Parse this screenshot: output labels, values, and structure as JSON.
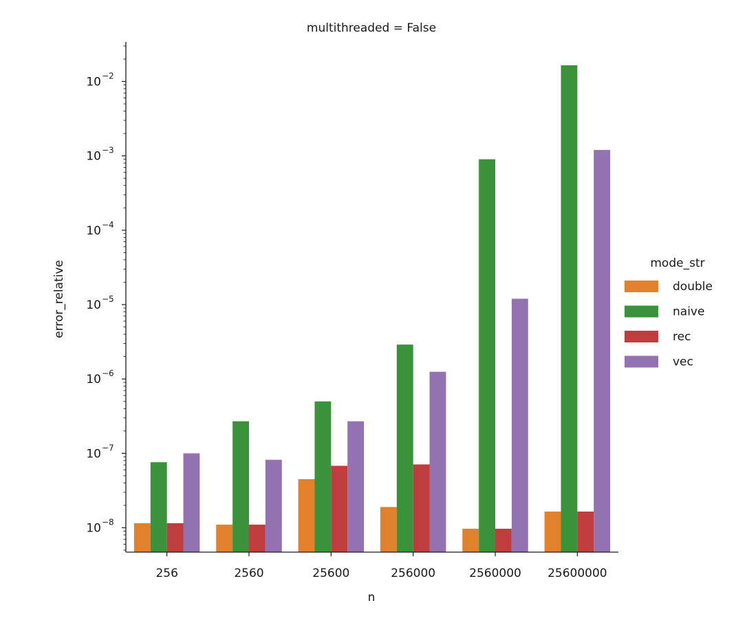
{
  "chart_data": {
    "type": "bar",
    "title": "multithreaded = False",
    "xlabel": "n",
    "ylabel": "error_relative",
    "yscale": "log",
    "ylim": [
      4.7e-09,
      0.034
    ],
    "grid": false,
    "legend": {
      "title": "mode_str",
      "placement": "right"
    },
    "categories": [
      "256",
      "2560",
      "25600",
      "256000",
      "2560000",
      "25600000"
    ],
    "yticks": [
      {
        "value": 1e-08,
        "base": "10",
        "exp": "−8"
      },
      {
        "value": 1e-07,
        "base": "10",
        "exp": "−7"
      },
      {
        "value": 1e-06,
        "base": "10",
        "exp": "−6"
      },
      {
        "value": 1e-05,
        "base": "10",
        "exp": "−5"
      },
      {
        "value": 0.0001,
        "base": "10",
        "exp": "−4"
      },
      {
        "value": 0.001,
        "base": "10",
        "exp": "−3"
      },
      {
        "value": 0.01,
        "base": "10",
        "exp": "−2"
      }
    ],
    "series": [
      {
        "name": "double",
        "color": "#e1812c",
        "values": [
          1.15e-08,
          1.1e-08,
          4.5e-08,
          1.9e-08,
          9.7e-09,
          1.65e-08
        ]
      },
      {
        "name": "naive",
        "color": "#3a923a",
        "values": [
          7.6e-08,
          2.7e-07,
          5e-07,
          2.9e-06,
          0.0009,
          0.0165
        ]
      },
      {
        "name": "rec",
        "color": "#c03d3e",
        "values": [
          1.15e-08,
          1.1e-08,
          6.8e-08,
          7.1e-08,
          9.7e-09,
          1.65e-08
        ]
      },
      {
        "name": "vec",
        "color": "#9372b2",
        "values": [
          1e-07,
          8.2e-08,
          2.7e-07,
          1.25e-06,
          1.2e-05,
          0.0012
        ]
      }
    ]
  }
}
